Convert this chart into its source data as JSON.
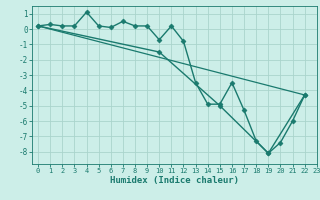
{
  "title": "",
  "xlabel": "Humidex (Indice chaleur)",
  "ylabel": "",
  "background_color": "#cceee8",
  "grid_color": "#aad4cc",
  "line_color": "#1a7a6e",
  "ylim": [
    -8.8,
    1.5
  ],
  "xlim": [
    -0.5,
    23
  ],
  "yticks": [
    -8,
    -7,
    -6,
    -5,
    -4,
    -3,
    -2,
    -1,
    0,
    1
  ],
  "xticks": [
    0,
    1,
    2,
    3,
    4,
    5,
    6,
    7,
    8,
    9,
    10,
    11,
    12,
    13,
    14,
    15,
    16,
    17,
    18,
    19,
    20,
    21,
    22,
    23
  ],
  "series": [
    {
      "x": [
        0,
        1,
        2,
        3,
        4,
        5,
        6,
        7,
        8,
        9,
        10,
        11,
        12,
        13,
        14,
        15,
        16,
        17,
        18,
        19,
        20,
        21,
        22
      ],
      "y": [
        0.2,
        0.3,
        0.2,
        0.2,
        1.1,
        0.2,
        0.1,
        0.5,
        0.2,
        0.2,
        -0.7,
        0.2,
        -0.8,
        -3.5,
        -4.9,
        -4.9,
        -3.5,
        -5.3,
        -7.3,
        -8.1,
        -7.4,
        -6.0,
        -4.3
      ],
      "marker": "D",
      "markersize": 2.5,
      "linewidth": 1.0
    },
    {
      "x": [
        0,
        22
      ],
      "y": [
        0.2,
        -4.3
      ],
      "marker": null,
      "markersize": 0,
      "linewidth": 0.9
    },
    {
      "x": [
        0,
        10,
        15,
        19,
        22
      ],
      "y": [
        0.2,
        -1.5,
        -5.0,
        -8.1,
        -4.3
      ],
      "marker": "D",
      "markersize": 2.5,
      "linewidth": 1.0
    }
  ]
}
